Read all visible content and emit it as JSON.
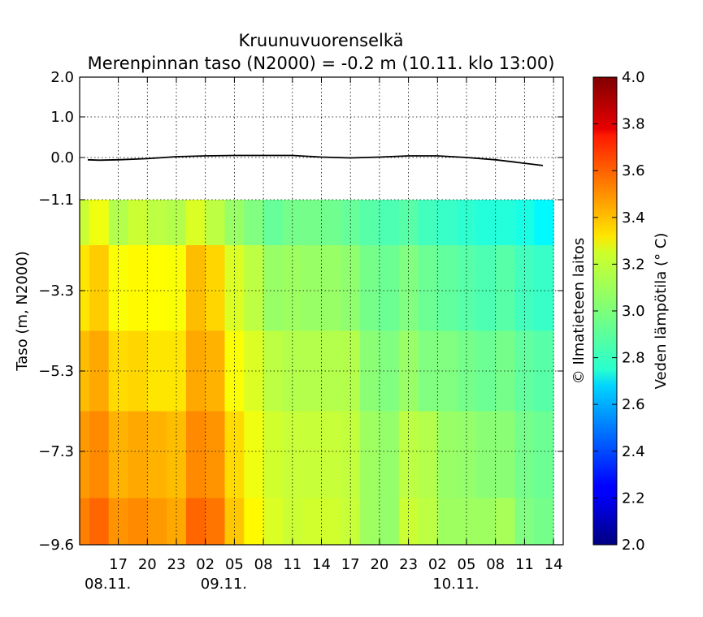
{
  "title": "Kruunuvuorenselkä",
  "subtitle": "Merenpinnan taso (N2000) = -0.2 m (10.11. klo 13:00)",
  "ylabel": "Taso (m, N2000)",
  "copyright": "© Ilmatieteen laitos",
  "colorbar_label": "Veden lämpötila (° C)",
  "chart_data": {
    "type": "heatmap",
    "title": "Kruunuvuorenselkä",
    "subtitle": "Merenpinnan taso (N2000) = -0.2 m (10.11. klo 13:00)",
    "ylabel": "Taso (m, N2000)",
    "y_ticks": [
      {
        "value": 2.0,
        "label": "2.0"
      },
      {
        "value": 1.0,
        "label": "1.0"
      },
      {
        "value": 0.0,
        "label": "0.0"
      },
      {
        "value": -1.1,
        "label": "−1.1"
      },
      {
        "value": -3.3,
        "label": "−3.3"
      },
      {
        "value": -5.3,
        "label": "−5.3"
      },
      {
        "value": -7.3,
        "label": "−7.3"
      },
      {
        "value": -9.6,
        "label": "−9.6"
      }
    ],
    "ylim": [
      -9.6,
      2.0
    ],
    "x_range": [
      "08.11. 13:00",
      "10.11. 15:00"
    ],
    "x_ticks": [
      {
        "time": "08.11. 17:00",
        "label": "17",
        "date_label": "08.11."
      },
      {
        "time": "08.11. 20:00",
        "label": "20"
      },
      {
        "time": "08.11. 23:00",
        "label": "23"
      },
      {
        "time": "09.11. 02:00",
        "label": "02"
      },
      {
        "time": "09.11. 05:00",
        "label": "05",
        "date_label": "09.11."
      },
      {
        "time": "09.11. 08:00",
        "label": "08"
      },
      {
        "time": "09.11. 11:00",
        "label": "11"
      },
      {
        "time": "09.11. 14:00",
        "label": "14"
      },
      {
        "time": "09.11. 17:00",
        "label": "17"
      },
      {
        "time": "09.11. 20:00",
        "label": "20"
      },
      {
        "time": "09.11. 23:00",
        "label": "23"
      },
      {
        "time": "10.11. 02:00",
        "label": "02"
      },
      {
        "time": "10.11. 05:00",
        "label": "05",
        "date_label": "10.11."
      },
      {
        "time": "10.11. 08:00",
        "label": "08"
      },
      {
        "time": "10.11. 11:00",
        "label": "11"
      },
      {
        "time": "10.11. 14:00",
        "label": "14"
      }
    ],
    "grid": true,
    "sea_level": {
      "time": [
        "08.11. 13:00",
        "08.11. 15:00",
        "08.11. 17:00",
        "08.11. 20:00",
        "08.11. 23:00",
        "09.11. 02:00",
        "09.11. 05:00",
        "09.11. 08:00",
        "09.11. 11:00",
        "09.11. 14:00",
        "09.11. 17:00",
        "09.11. 20:00",
        "09.11. 23:00",
        "10.11. 02:00",
        "10.11. 05:00",
        "10.11. 08:00",
        "10.11. 11:00",
        "10.11. 14:00"
      ],
      "level_m": [
        -0.06,
        -0.07,
        -0.06,
        -0.03,
        0.02,
        0.04,
        0.05,
        0.05,
        0.05,
        0.01,
        -0.01,
        0.01,
        0.04,
        0.04,
        0.0,
        -0.06,
        -0.15,
        -0.21
      ]
    },
    "temperature_grid": {
      "description_units": "°C",
      "depths_m": [
        -1.1,
        -3.3,
        -5.3,
        -7.3,
        -9.6
      ],
      "columns": [
        {
          "time": "08.11. 13:00",
          "temps": [
            3.15,
            3.3,
            3.38,
            3.45,
            3.5
          ]
        },
        {
          "time": "08.11. 15:00",
          "temps": [
            3.22,
            3.35,
            3.42,
            3.48,
            3.55
          ]
        },
        {
          "time": "08.11. 17:00",
          "temps": [
            3.1,
            3.24,
            3.32,
            3.4,
            3.46
          ]
        },
        {
          "time": "08.11. 19:00",
          "temps": [
            3.15,
            3.26,
            3.33,
            3.42,
            3.48
          ]
        },
        {
          "time": "08.11. 21:00",
          "temps": [
            3.12,
            3.25,
            3.3,
            3.4,
            3.45
          ]
        },
        {
          "time": "08.11. 23:00",
          "temps": [
            3.1,
            3.24,
            3.3,
            3.38,
            3.42
          ]
        },
        {
          "time": "09.11. 01:00",
          "temps": [
            3.18,
            3.38,
            3.42,
            3.48,
            3.55
          ]
        },
        {
          "time": "09.11. 03:00",
          "temps": [
            3.12,
            3.33,
            3.4,
            3.46,
            3.52
          ]
        },
        {
          "time": "09.11. 05:00",
          "temps": [
            3.05,
            3.18,
            3.24,
            3.32,
            3.36
          ]
        },
        {
          "time": "09.11. 07:00",
          "temps": [
            3.0,
            3.12,
            3.18,
            3.22,
            3.26
          ]
        },
        {
          "time": "09.11. 09:00",
          "temps": [
            2.95,
            3.05,
            3.12,
            3.16,
            3.18
          ]
        },
        {
          "time": "09.11. 11:00",
          "temps": [
            2.98,
            3.06,
            3.1,
            3.14,
            3.15
          ]
        },
        {
          "time": "09.11. 13:00",
          "temps": [
            2.98,
            3.05,
            3.1,
            3.14,
            3.16
          ]
        },
        {
          "time": "09.11. 15:00",
          "temps": [
            2.97,
            3.05,
            3.1,
            3.14,
            3.16
          ]
        },
        {
          "time": "09.11. 17:00",
          "temps": [
            2.95,
            3.03,
            3.1,
            3.13,
            3.14
          ]
        },
        {
          "time": "09.11. 19:00",
          "temps": [
            2.92,
            2.98,
            3.02,
            3.06,
            3.06
          ]
        },
        {
          "time": "09.11. 21:00",
          "temps": [
            2.9,
            2.96,
            3.0,
            3.04,
            3.04
          ]
        },
        {
          "time": "09.11. 23:00",
          "temps": [
            2.92,
            3.0,
            3.05,
            3.12,
            3.15
          ]
        },
        {
          "time": "10.11. 01:00",
          "temps": [
            2.88,
            2.96,
            3.0,
            3.1,
            3.12
          ]
        },
        {
          "time": "10.11. 03:00",
          "temps": [
            2.86,
            2.94,
            3.0,
            3.05,
            3.06
          ]
        },
        {
          "time": "10.11. 05:00",
          "temps": [
            2.84,
            2.92,
            2.98,
            3.04,
            3.06
          ]
        },
        {
          "time": "10.11. 07:00",
          "temps": [
            2.82,
            2.9,
            2.96,
            3.02,
            3.06
          ]
        },
        {
          "time": "10.11. 09:00",
          "temps": [
            2.82,
            2.92,
            2.98,
            3.02,
            3.08
          ]
        },
        {
          "time": "10.11. 11:00",
          "temps": [
            2.8,
            2.88,
            2.94,
            2.98,
            3.0
          ]
        },
        {
          "time": "10.11. 13:00",
          "temps": [
            2.74,
            2.86,
            2.92,
            2.96,
            2.98
          ]
        },
        {
          "time": "10.11. 15:00",
          "temps": [
            2.72,
            2.86,
            2.92,
            2.96,
            2.98
          ]
        }
      ]
    },
    "colorbar": {
      "colormap": "jet",
      "range": [
        2.0,
        4.0
      ],
      "ticks": [
        {
          "value": 2.0,
          "label": "2.0"
        },
        {
          "value": 2.2,
          "label": "2.2"
        },
        {
          "value": 2.4,
          "label": "2.4"
        },
        {
          "value": 2.6,
          "label": "2.6"
        },
        {
          "value": 2.8,
          "label": "2.8"
        },
        {
          "value": 3.0,
          "label": "3.0"
        },
        {
          "value": 3.2,
          "label": "3.2"
        },
        {
          "value": 3.4,
          "label": "3.4"
        },
        {
          "value": 3.6,
          "label": "3.6"
        },
        {
          "value": 3.8,
          "label": "3.8"
        },
        {
          "value": 4.0,
          "label": "4.0"
        }
      ],
      "label": "Veden lämpötila (° C)"
    }
  }
}
